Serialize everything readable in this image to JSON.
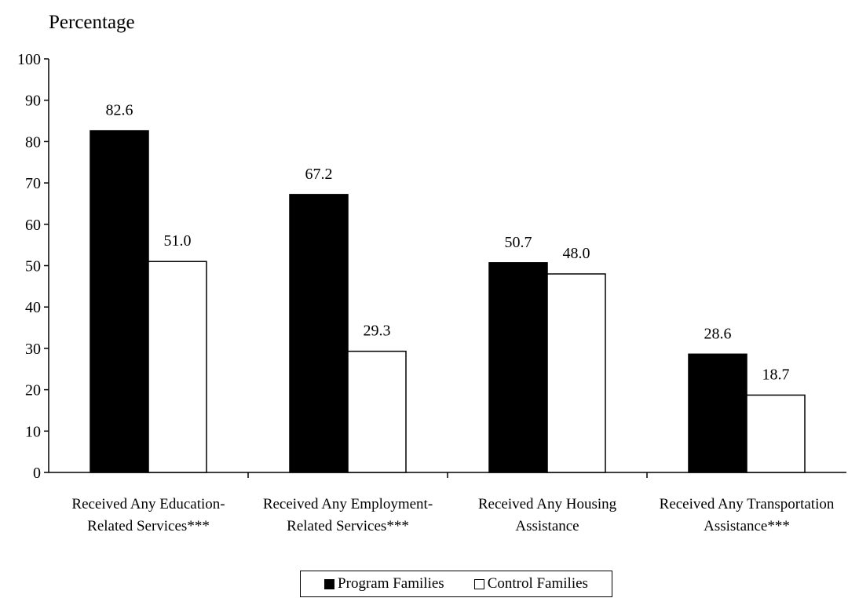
{
  "chart_data": {
    "type": "bar",
    "ylabel": "Percentage",
    "ylim": [
      0,
      100
    ],
    "yticks": [
      0,
      10,
      20,
      30,
      40,
      50,
      60,
      70,
      80,
      90,
      100
    ],
    "categories": [
      [
        "Received Any Education-",
        "Related Services***"
      ],
      [
        "Received Any Employment-",
        "Related Services***"
      ],
      [
        "Received Any Housing",
        "Assistance"
      ],
      [
        "Received Any Transportation",
        "Assistance***"
      ]
    ],
    "series": [
      {
        "name": "Program Families",
        "color": "#000000",
        "values": [
          82.6,
          67.2,
          50.7,
          28.6
        ],
        "labels": [
          "82.6",
          "67.2",
          "50.7",
          "28.6"
        ]
      },
      {
        "name": "Control Families",
        "color": "#ffffff",
        "values": [
          51.0,
          29.3,
          48.0,
          18.7
        ],
        "labels": [
          "51.0",
          "29.3",
          "48.0",
          "18.7"
        ]
      }
    ],
    "legend": "bottom-center",
    "grid": false
  }
}
